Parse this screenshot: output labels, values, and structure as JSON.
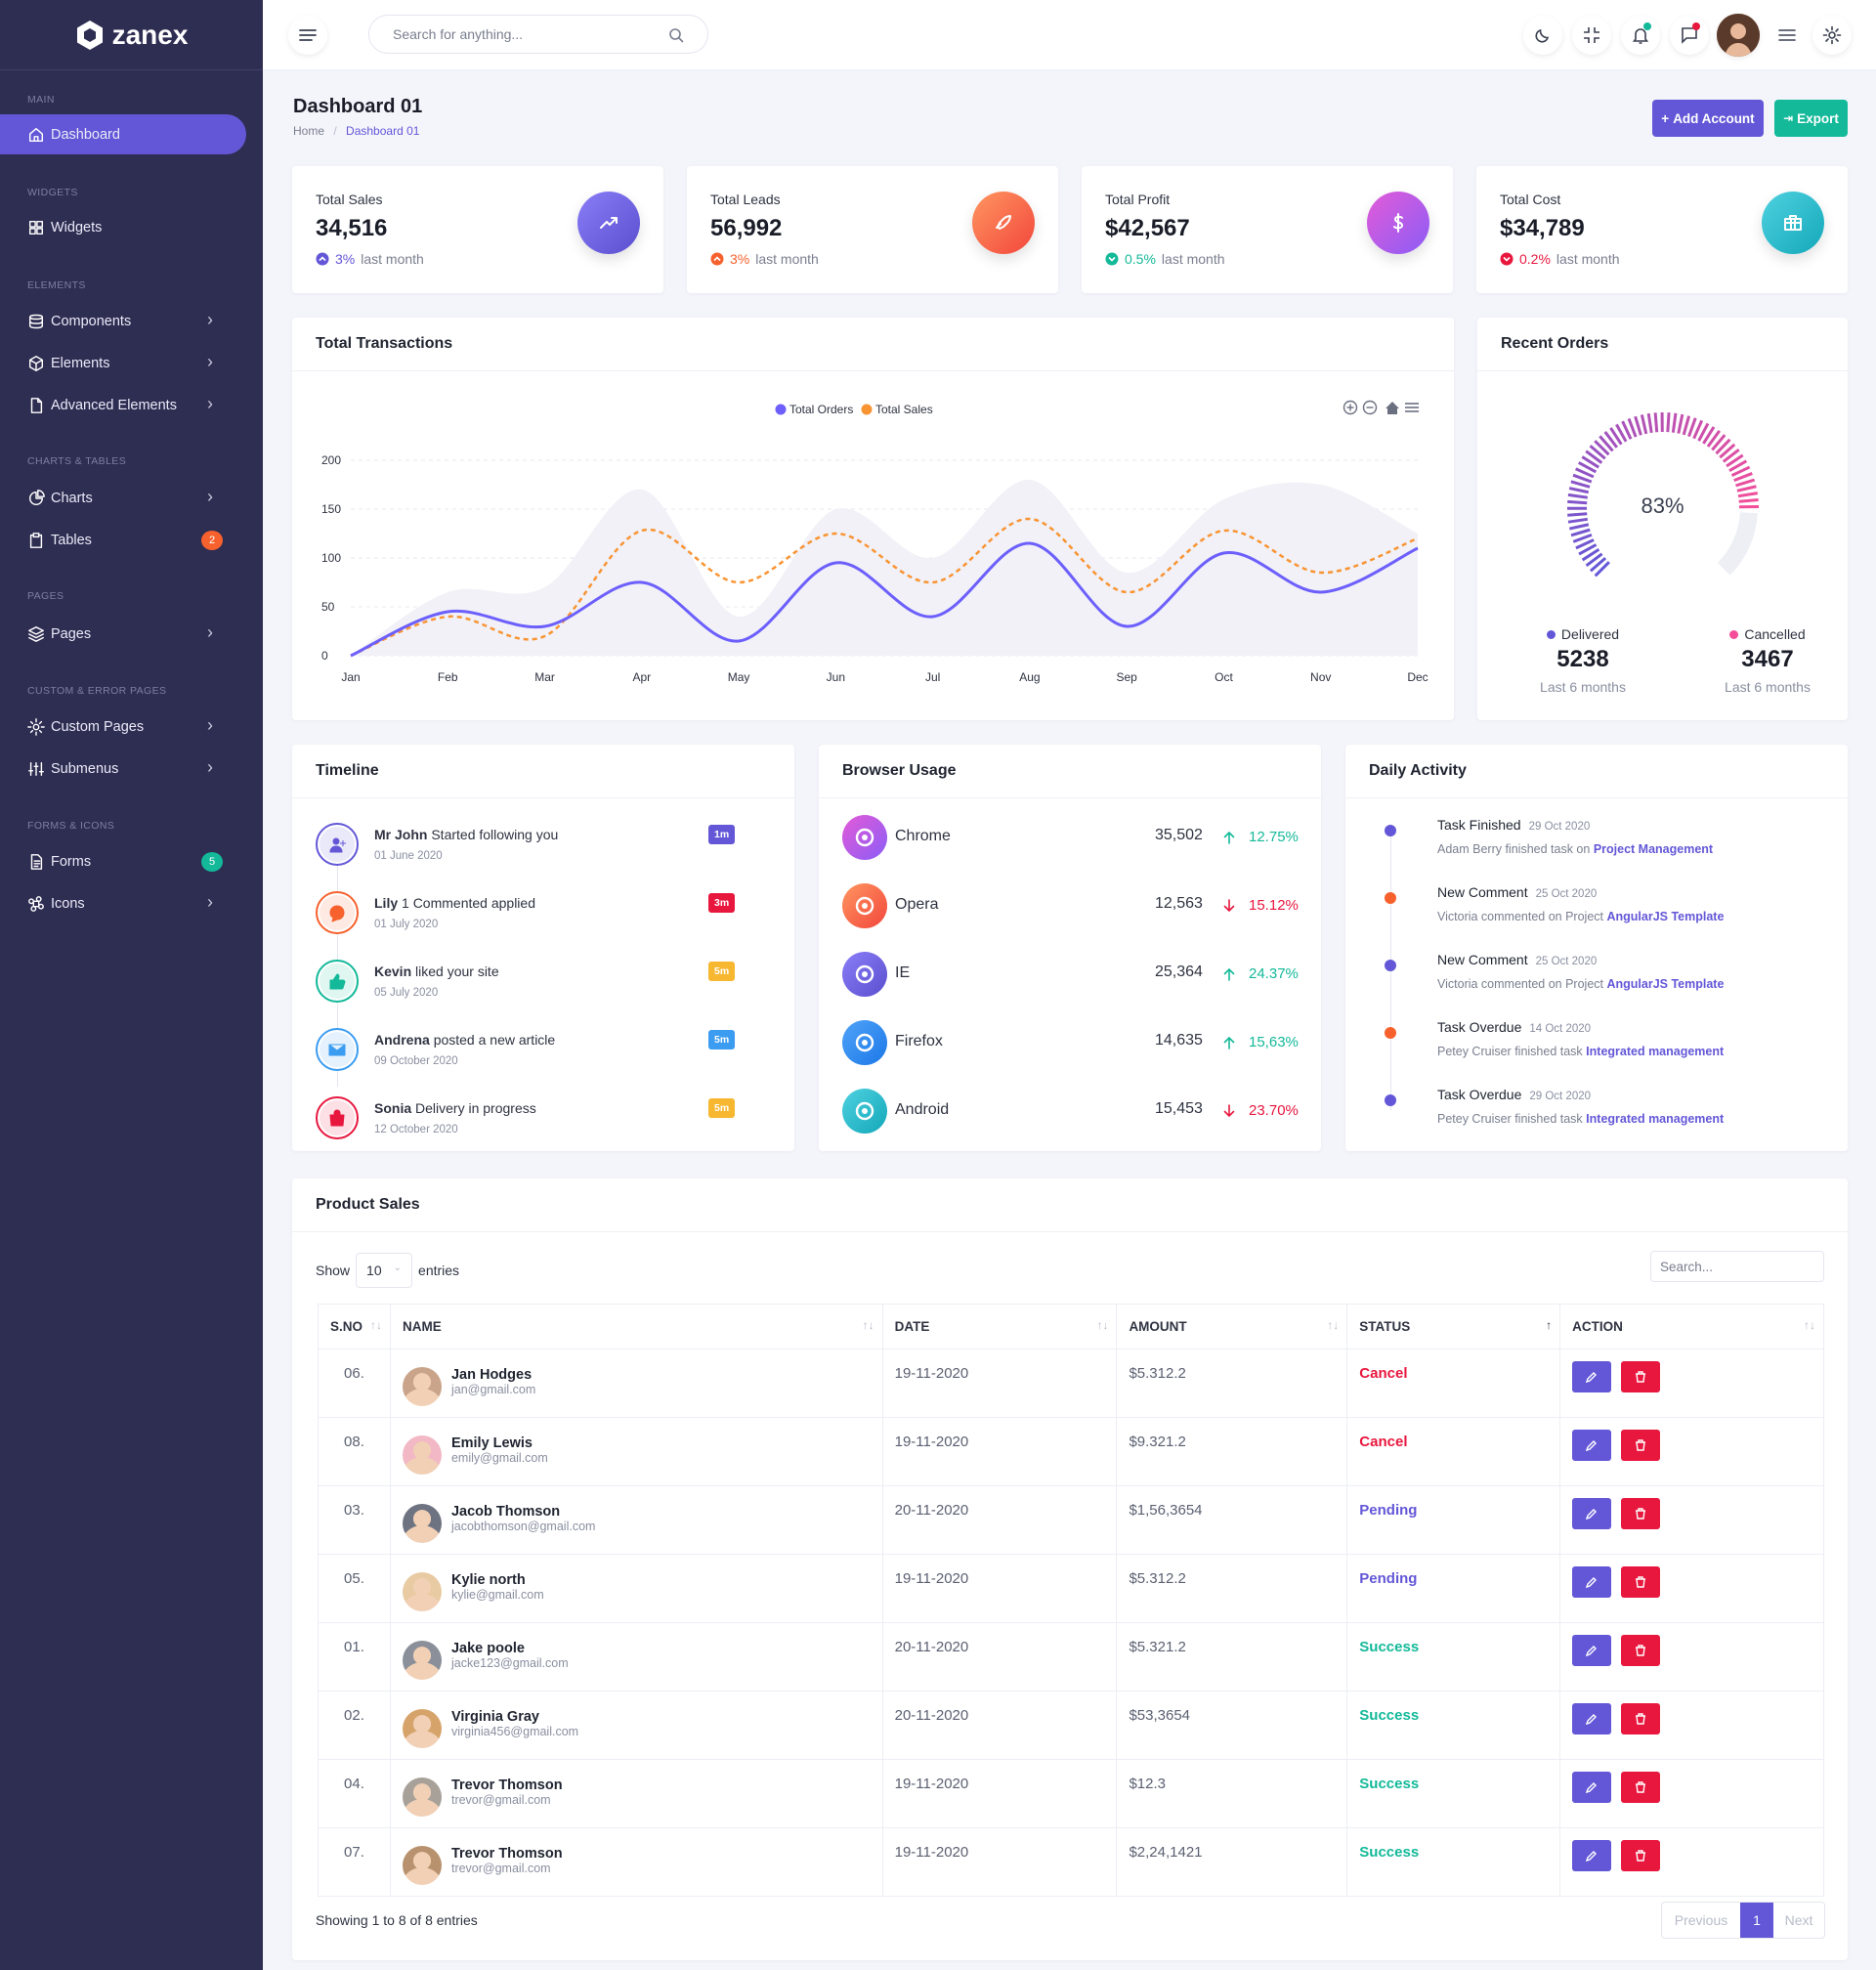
{
  "app": {
    "name": "zanex"
  },
  "sidebar": {
    "categories": [
      "MAIN",
      "WIDGETS",
      "ELEMENTS",
      "CHARTS & TABLES",
      "PAGES",
      "CUSTOM & ERROR PAGES",
      "FORMS & ICONS"
    ],
    "items": [
      {
        "label": "Dashboard",
        "icon": "home-icon",
        "active": true
      },
      {
        "label": "Widgets",
        "icon": "grid-icon"
      },
      {
        "label": "Components",
        "icon": "database-icon",
        "chevron": true
      },
      {
        "label": "Elements",
        "icon": "package-icon",
        "chevron": true
      },
      {
        "label": "Advanced Elements",
        "icon": "file-icon",
        "chevron": true
      },
      {
        "label": "Charts",
        "icon": "pie-chart-icon",
        "chevron": true
      },
      {
        "label": "Tables",
        "icon": "clipboard-icon",
        "badge": "2",
        "badge_color": "#f7612d"
      },
      {
        "label": "Pages",
        "icon": "layers-icon",
        "chevron": true
      },
      {
        "label": "Custom Pages",
        "icon": "settings-icon",
        "chevron": true
      },
      {
        "label": "Submenus",
        "icon": "sliders-icon",
        "chevron": true
      },
      {
        "label": "Forms",
        "icon": "file-text-icon",
        "badge": "5",
        "badge_color": "#13b999"
      },
      {
        "label": "Icons",
        "icon": "command-icon",
        "chevron": true
      }
    ]
  },
  "topbar": {
    "search_placeholder": "Search for anything..."
  },
  "page": {
    "title": "Dashboard 01",
    "breadcrumb": [
      "Home",
      "Dashboard 01"
    ],
    "add_account_label": "Add Account",
    "export_label": "Export"
  },
  "stats": [
    {
      "label": "Total Sales",
      "value": "34,516",
      "change": "3%",
      "suffix": "last month",
      "change_color": "#6357d7",
      "direction": "up"
    },
    {
      "label": "Total Leads",
      "value": "56,992",
      "change": "3%",
      "suffix": "last month",
      "change_color": "#f7612d",
      "direction": "up"
    },
    {
      "label": "Total Profit",
      "value": "$42,567",
      "change": "0.5%",
      "suffix": "last month",
      "change_color": "#13b999",
      "direction": "down"
    },
    {
      "label": "Total Cost",
      "value": "$34,789",
      "change": "0.2%",
      "suffix": "last month",
      "change_color": "#e8173e",
      "direction": "down"
    }
  ],
  "transactions": {
    "title": "Total Transactions",
    "legend": [
      "Total Orders",
      "Total Sales"
    ]
  },
  "chart_data": {
    "type": "area",
    "categories": [
      "Jan",
      "Feb",
      "Mar",
      "Apr",
      "May",
      "Jun",
      "Jul",
      "Aug",
      "Sep",
      "Oct",
      "Nov",
      "Dec"
    ],
    "series": [
      {
        "name": "Total Orders",
        "values": [
          0,
          45,
          30,
          75,
          15,
          95,
          40,
          115,
          30,
          105,
          65,
          110
        ],
        "color": "#6c5ffc"
      },
      {
        "name": "Total Sales",
        "values": [
          0,
          40,
          20,
          128,
          75,
          125,
          75,
          140,
          65,
          128,
          85,
          120
        ],
        "color": "#f99433"
      },
      {
        "values": [
          0,
          65,
          70,
          170,
          40,
          150,
          100,
          180,
          85,
          160,
          175,
          125
        ],
        "color": "#f1f1f7"
      }
    ],
    "ylim": [
      0,
      200
    ],
    "yticks": [
      0,
      50,
      100,
      150,
      200
    ]
  },
  "recent_orders": {
    "title": "Recent Orders",
    "percent": 83,
    "delivered": {
      "label": "Delivered",
      "value": "5238",
      "sub": "Last 6 months"
    },
    "cancelled": {
      "label": "Cancelled",
      "value": "3467",
      "sub": "Last 6 months"
    }
  },
  "timeline": {
    "title": "Timeline",
    "items": [
      {
        "name": "Mr John",
        "text": "Started following you",
        "date": "01 June 2020",
        "badge": "1m",
        "color": "#6357d7",
        "icon": "user-plus-icon"
      },
      {
        "name": "Lily",
        "text": "1 Commented applied",
        "date": "01 July 2020",
        "badge": "3m",
        "color": "#f7612d",
        "badge_color": "#e8173e",
        "icon": "chat-icon"
      },
      {
        "name": "Kevin",
        "text": "liked your site",
        "date": "05 July 2020",
        "badge": "5m",
        "color": "#13b999",
        "badge_color": "#f7b731",
        "icon": "thumbs-up-icon"
      },
      {
        "name": "Andrena",
        "text": "posted a new article",
        "date": "09 October 2020",
        "badge": "5m",
        "color": "#3b9cf1",
        "badge_color": "#3b9cf1",
        "icon": "mail-icon"
      },
      {
        "name": "Sonia",
        "text": "Delivery in progress",
        "date": "12 October 2020",
        "badge": "5m",
        "color": "#e8173e",
        "badge_color": "#f7b731",
        "icon": "shopping-bag-icon"
      }
    ]
  },
  "browser": {
    "title": "Browser Usage",
    "items": [
      {
        "name": "Chrome",
        "value": "35,502",
        "pct": "12.75%",
        "up": true
      },
      {
        "name": "Opera",
        "value": "12,563",
        "pct": "15.12%",
        "up": false
      },
      {
        "name": "IE",
        "value": "25,364",
        "pct": "24.37%",
        "up": true
      },
      {
        "name": "Firefox",
        "value": "14,635",
        "pct": "15,63%",
        "up": true
      },
      {
        "name": "Android",
        "value": "15,453",
        "pct": "23.70%",
        "up": false
      }
    ]
  },
  "daily": {
    "title": "Daily Activity",
    "items": [
      {
        "title": "Task Finished",
        "date": "29 Oct 2020",
        "desc": "Adam Berry finished task on",
        "link": "Project Management",
        "color": "#6357d7"
      },
      {
        "title": "New Comment",
        "date": "25 Oct 2020",
        "desc": "Victoria commented on Project",
        "link": "AngularJS Template",
        "color": "#f7612d"
      },
      {
        "title": "New Comment",
        "date": "25 Oct 2020",
        "desc": "Victoria commented on Project",
        "link": "AngularJS Template",
        "color": "#6357d7"
      },
      {
        "title": "Task Overdue",
        "date": "14 Oct 2020",
        "desc": "Petey Cruiser finished task",
        "link": "Integrated management",
        "color": "#f7612d"
      },
      {
        "title": "Task Overdue",
        "date": "29 Oct 2020",
        "desc": "Petey Cruiser finished task",
        "link": "Integrated management",
        "color": "#6357d7"
      }
    ]
  },
  "products": {
    "title": "Product Sales",
    "show_label": "Show",
    "entries_value": "10",
    "entries_label": "entries",
    "search_placeholder": "Search...",
    "columns": [
      "S.NO",
      "NAME",
      "DATE",
      "AMOUNT",
      "STATUS",
      "ACTION"
    ],
    "rows": [
      {
        "sno": "06.",
        "name": "Jan Hodges",
        "email": "jan@gmail.com",
        "date": "19-11-2020",
        "amount": "$5.312.2",
        "status": "Cancel"
      },
      {
        "sno": "08.",
        "name": "Emily Lewis",
        "email": "emily@gmail.com",
        "date": "19-11-2020",
        "amount": "$9.321.2",
        "status": "Cancel"
      },
      {
        "sno": "03.",
        "name": "Jacob Thomson",
        "email": "jacobthomson@gmail.com",
        "date": "20-11-2020",
        "amount": "$1,56,3654",
        "status": "Pending"
      },
      {
        "sno": "05.",
        "name": "Kylie north",
        "email": "kylie@gmail.com",
        "date": "19-11-2020",
        "amount": "$5.312.2",
        "status": "Pending"
      },
      {
        "sno": "01.",
        "name": "Jake poole",
        "email": "jacke123@gmail.com",
        "date": "20-11-2020",
        "amount": "$5.321.2",
        "status": "Success"
      },
      {
        "sno": "02.",
        "name": "Virginia Gray",
        "email": "virginia456@gmail.com",
        "date": "20-11-2020",
        "amount": "$53,3654",
        "status": "Success"
      },
      {
        "sno": "04.",
        "name": "Trevor Thomson",
        "email": "trevor@gmail.com",
        "date": "19-11-2020",
        "amount": "$12.3",
        "status": "Success"
      },
      {
        "sno": "07.",
        "name": "Trevor Thomson",
        "email": "trevor@gmail.com",
        "date": "19-11-2020",
        "amount": "$2,24,1421",
        "status": "Success"
      }
    ],
    "footer": "Showing 1 to 8 of 8 entries",
    "pagination": {
      "prev": "Previous",
      "page": "1",
      "next": "Next"
    }
  },
  "colors": {
    "primary": "#6357d7",
    "secondary": "#f7612d",
    "success": "#13b999",
    "danger": "#e8173e",
    "info": "#3b9cf1",
    "warning": "#f7b731",
    "sidebar_bg": "#2e2d52"
  }
}
